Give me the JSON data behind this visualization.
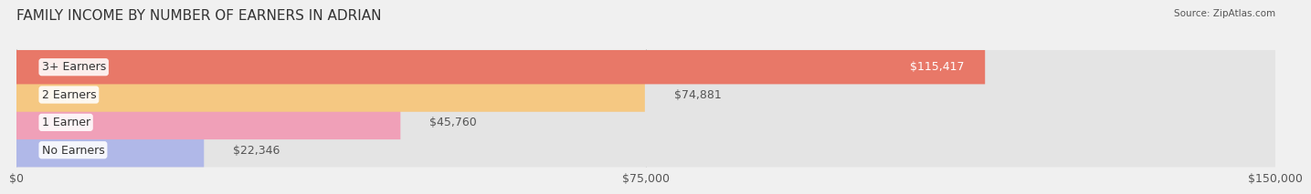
{
  "title": "FAMILY INCOME BY NUMBER OF EARNERS IN ADRIAN",
  "source": "Source: ZipAtlas.com",
  "categories": [
    "No Earners",
    "1 Earner",
    "2 Earners",
    "3+ Earners"
  ],
  "values": [
    22346,
    45760,
    74881,
    115417
  ],
  "bar_colors": [
    "#b0b8e8",
    "#f0a0b8",
    "#f5c882",
    "#e87868"
  ],
  "bar_labels": [
    "$22,346",
    "$45,760",
    "$74,881",
    "$115,417"
  ],
  "label_inside": [
    false,
    false,
    false,
    true
  ],
  "xlim": [
    0,
    150000
  ],
  "xticks": [
    0,
    75000,
    150000
  ],
  "xtick_labels": [
    "$0",
    "$75,000",
    "$150,000"
  ],
  "background_color": "#f0f0f0",
  "bar_background_color": "#e4e4e4",
  "title_fontsize": 11,
  "label_fontsize": 9,
  "tick_fontsize": 9,
  "bar_height": 0.62,
  "fig_width": 14.06,
  "fig_height": 2.33
}
